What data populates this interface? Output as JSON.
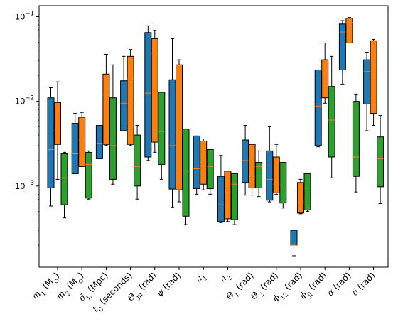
{
  "chart_data": {
    "type": "box",
    "title": "",
    "xlabel": "",
    "ylabel": "",
    "yscale": "log",
    "ylim": [
      0.00011,
      0.135
    ],
    "yticks": [
      {
        "value": 0.001,
        "base": "10",
        "exp": "−3"
      },
      {
        "value": 0.01,
        "base": "10",
        "exp": "−2"
      },
      {
        "value": 0.1,
        "base": "10",
        "exp": "−1"
      }
    ],
    "legend": "none",
    "grid": false,
    "series": [
      {
        "color": "#1f77b4",
        "median_color": "#ff7f0e"
      },
      {
        "color": "#ff7f0e",
        "median_color": "#ff7f0e"
      },
      {
        "color": "#2ca02c",
        "median_color": "#ff7f0e"
      }
    ],
    "categories": [
      {
        "parts": [
          {
            "t": "m"
          },
          {
            "t": "1",
            "sub": true
          },
          {
            "t": " (M"
          },
          {
            "t": "⊙",
            "sub": true
          },
          {
            "t": ")"
          }
        ],
        "boxes": [
          {
            "whislo": 0.00058,
            "q1": 0.00095,
            "med": 0.0027,
            "q3": 0.011,
            "whishi": 0.0145
          },
          {
            "whislo": 0.0012,
            "q1": 0.0031,
            "med": 0.0045,
            "q3": 0.0097,
            "whishi": 0.017
          },
          {
            "whislo": 0.00042,
            "q1": 0.0006,
            "med": 0.00125,
            "q3": 0.0024,
            "whishi": 0.0025
          }
        ]
      },
      {
        "parts": [
          {
            "t": "m"
          },
          {
            "t": "2",
            "sub": true
          },
          {
            "t": " (M"
          },
          {
            "t": "⊙",
            "sub": true
          },
          {
            "t": ")"
          }
        ],
        "boxes": [
          {
            "whislo": 0.0014,
            "q1": 0.0014,
            "med": 0.0024,
            "q3": 0.0055,
            "whishi": 0.0072
          },
          {
            "whislo": 0.0017,
            "q1": 0.0017,
            "med": 0.0035,
            "q3": 0.0065,
            "whishi": 0.0074
          },
          {
            "whislo": 0.0007,
            "q1": 0.00072,
            "med": 0.0018,
            "q3": 0.0025,
            "whishi": 0.0026
          }
        ]
      },
      {
        "parts": [
          {
            "t": "d"
          },
          {
            "t": "L",
            "sub": true
          },
          {
            "t": " (Mpc)"
          }
        ],
        "boxes": [
          {
            "whislo": 0.0021,
            "q1": 0.0021,
            "med": 0.0032,
            "q3": 0.0052,
            "whishi": 0.0052
          },
          {
            "whislo": 0.003,
            "q1": 0.0031,
            "med": 0.012,
            "q3": 0.021,
            "whishi": 0.036
          },
          {
            "whislo": 0.00105,
            "q1": 0.0012,
            "med": 0.003,
            "q3": 0.011,
            "whishi": 0.027
          }
        ]
      },
      {
        "parts": [
          {
            "t": "t"
          },
          {
            "t": "0",
            "sub": true
          },
          {
            "t": " (seconds)"
          }
        ],
        "boxes": [
          {
            "whislo": 0.0045,
            "q1": 0.0045,
            "med": 0.0095,
            "q3": 0.0175,
            "whishi": 0.034
          },
          {
            "whislo": 0.003,
            "q1": 0.0031,
            "med": 0.0185,
            "q3": 0.034,
            "whishi": 0.041
          },
          {
            "whislo": 0.0007,
            "q1": 0.001,
            "med": 0.0017,
            "q3": 0.004,
            "whishi": 0.0052
          }
        ]
      },
      {
        "parts": [
          {
            "t": "Θ"
          },
          {
            "t": "jn",
            "sub": true
          },
          {
            "t": " (rad)"
          }
        ],
        "boxes": [
          {
            "whislo": 0.002,
            "q1": 0.0022,
            "med": 0.0125,
            "q3": 0.065,
            "whishi": 0.078
          },
          {
            "whislo": 0.0025,
            "q1": 0.0033,
            "med": 0.037,
            "q3": 0.055,
            "whishi": 0.069
          },
          {
            "whislo": 0.0012,
            "q1": 0.0018,
            "med": 0.0044,
            "q3": 0.0128,
            "whishi": 0.0128
          }
        ]
      },
      {
        "parts": [
          {
            "t": "ψ"
          },
          {
            "t": " (rad)"
          }
        ],
        "boxes": [
          {
            "whislo": 0.00056,
            "q1": 0.00092,
            "med": 0.003,
            "q3": 0.018,
            "whishi": 0.055
          },
          {
            "whislo": 0.00065,
            "q1": 0.0009,
            "med": 0.0043,
            "q3": 0.027,
            "whishi": 0.031
          },
          {
            "whislo": 0.00035,
            "q1": 0.00044,
            "med": 0.0015,
            "q3": 0.0047,
            "whishi": 0.0047
          }
        ]
      },
      {
        "parts": [
          {
            "t": "a"
          },
          {
            "t": "1",
            "sub": true
          }
        ],
        "boxes": [
          {
            "whislo": 0.0008,
            "q1": 0.00093,
            "med": 0.0016,
            "q3": 0.0039,
            "whishi": 0.0039
          },
          {
            "whislo": 0.0009,
            "q1": 0.00105,
            "med": 0.0019,
            "q3": 0.0034,
            "whishi": 0.0036
          },
          {
            "whislo": 0.0008,
            "q1": 0.00093,
            "med": 0.0017,
            "q3": 0.0027,
            "whishi": 0.0027
          }
        ]
      },
      {
        "parts": [
          {
            "t": "a"
          },
          {
            "t": "2",
            "sub": true
          }
        ],
        "boxes": [
          {
            "whislo": 0.00037,
            "q1": 0.00038,
            "med": 0.0006,
            "q3": 0.0013,
            "whishi": 0.0023
          },
          {
            "whislo": 0.00038,
            "q1": 0.00041,
            "med": 0.00085,
            "q3": 0.0015,
            "whishi": 0.0015
          },
          {
            "whislo": 0.00035,
            "q1": 0.0004,
            "med": 0.00105,
            "q3": 0.0014,
            "whishi": 0.0014
          }
        ]
      },
      {
        "parts": [
          {
            "t": "Θ"
          },
          {
            "t": "1",
            "sub": true
          },
          {
            "t": " (rad)"
          }
        ],
        "boxes": [
          {
            "whislo": 0.00078,
            "q1": 0.0011,
            "med": 0.002,
            "q3": 0.0035,
            "whishi": 0.0052
          },
          {
            "whislo": 0.00078,
            "q1": 0.00095,
            "med": 0.0013,
            "q3": 0.0031,
            "whishi": 0.0031
          },
          {
            "whislo": 0.00075,
            "q1": 0.00095,
            "med": 0.0017,
            "q3": 0.0019,
            "whishi": 0.0026
          }
        ]
      },
      {
        "parts": [
          {
            "t": "Θ"
          },
          {
            "t": "2",
            "sub": true
          },
          {
            "t": " (rad)"
          }
        ],
        "boxes": [
          {
            "whislo": 0.00065,
            "q1": 0.00068,
            "med": 0.0012,
            "q3": 0.0026,
            "whishi": 0.005
          },
          {
            "whislo": 0.0008,
            "q1": 0.00083,
            "med": 0.00105,
            "q3": 0.0022,
            "whishi": 0.0031
          },
          {
            "whislo": 0.00055,
            "q1": 0.00063,
            "med": 0.00095,
            "q3": 0.0019,
            "whishi": 0.0019
          }
        ]
      },
      {
        "parts": [
          {
            "t": "ϕ"
          },
          {
            "t": "12",
            "sub": true
          },
          {
            "t": " (rad)"
          }
        ],
        "boxes": [
          {
            "whislo": 0.00015,
            "q1": 0.0002,
            "med": 0.0002,
            "q3": 0.0003,
            "whishi": 0.0003
          },
          {
            "whislo": 0.00047,
            "q1": 0.00048,
            "med": 0.00065,
            "q3": 0.0011,
            "whishi": 0.0012
          },
          {
            "whislo": 0.0005,
            "q1": 0.00052,
            "med": 0.00095,
            "q3": 0.0014,
            "whishi": 0.0014
          }
        ]
      },
      {
        "parts": [
          {
            "t": "ϕ"
          },
          {
            "t": "jl",
            "sub": true
          },
          {
            "t": " (rad)"
          }
        ],
        "boxes": [
          {
            "whislo": 0.0029,
            "q1": 0.003,
            "med": 0.0088,
            "q3": 0.0235,
            "whishi": 0.0235
          },
          {
            "whislo": 0.0095,
            "q1": 0.011,
            "med": 0.023,
            "q3": 0.031,
            "whishi": 0.049
          },
          {
            "whislo": 0.00125,
            "q1": 0.0022,
            "med": 0.006,
            "q3": 0.015,
            "whishi": 0.034
          }
        ]
      },
      {
        "parts": [
          {
            "t": "α"
          },
          {
            "t": " (rad)"
          }
        ],
        "boxes": [
          {
            "whislo": 0.016,
            "q1": 0.0235,
            "med": 0.066,
            "q3": 0.082,
            "whishi": 0.09
          },
          {
            "whislo": 0.049,
            "q1": 0.049,
            "med": 0.085,
            "q3": 0.096,
            "whishi": 0.098
          },
          {
            "whislo": 0.00085,
            "q1": 0.0013,
            "med": 0.0022,
            "q3": 0.01,
            "whishi": 0.0122
          }
        ]
      },
      {
        "parts": [
          {
            "t": "δ"
          },
          {
            "t": " (rad)"
          }
        ],
        "boxes": [
          {
            "whislo": 0.0045,
            "q1": 0.0093,
            "med": 0.0225,
            "q3": 0.031,
            "whishi": 0.038
          },
          {
            "whislo": 0.0052,
            "q1": 0.0072,
            "med": 0.052,
            "q3": 0.052,
            "whishi": 0.054
          },
          {
            "whislo": 0.00062,
            "q1": 0.00098,
            "med": 0.0021,
            "q3": 0.0038,
            "whishi": 0.0068
          }
        ]
      }
    ]
  }
}
